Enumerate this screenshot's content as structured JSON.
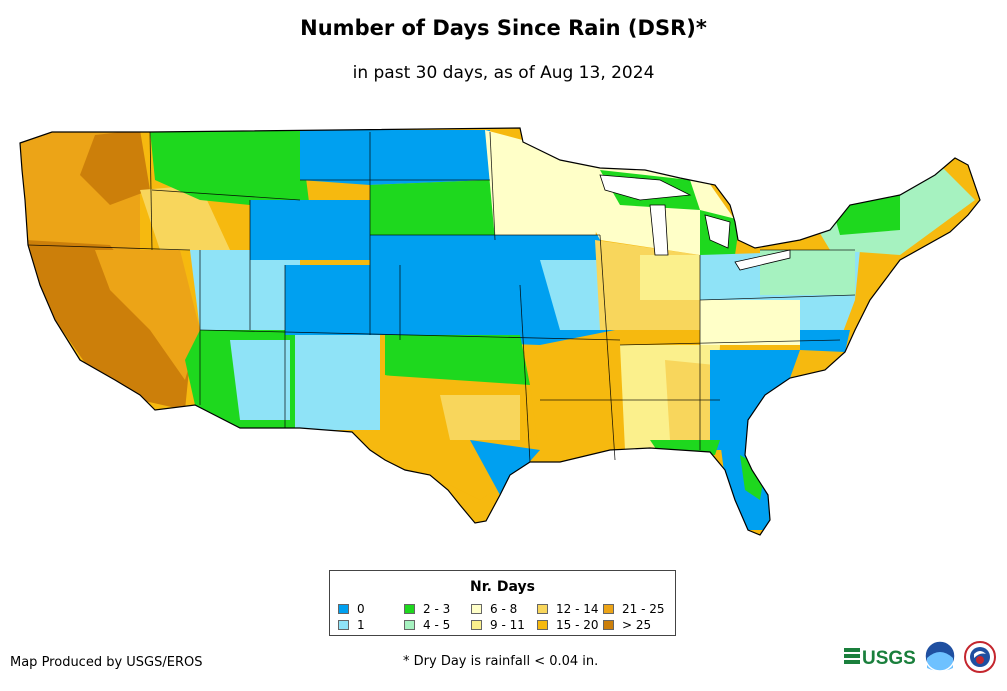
{
  "title": "Number of Days Since Rain (DSR)*",
  "subtitle": "in past 30 days, as of Aug 13, 2024",
  "legend": {
    "title": "Nr. Days",
    "items": [
      {
        "label": "0",
        "color": "#00a0f0"
      },
      {
        "label": "1",
        "color": "#8fe3f7"
      },
      {
        "label": "2 - 3",
        "color": "#1ed81e"
      },
      {
        "label": "4 - 5",
        "color": "#a6f2c0"
      },
      {
        "label": "6 - 8",
        "color": "#ffffc8"
      },
      {
        "label": "9 - 11",
        "color": "#fbf08c"
      },
      {
        "label": "12 - 14",
        "color": "#f8d65c"
      },
      {
        "label": "15 - 20",
        "color": "#f6b90f"
      },
      {
        "label": "21 - 25",
        "color": "#eca417"
      },
      {
        "label": "> 25",
        "color": "#cc7f0a"
      }
    ]
  },
  "credit": "Map Produced by USGS/EROS",
  "footnote": "* Dry Day is rainfall < 0.04 in.",
  "logos": {
    "usgs_text": "USGS"
  },
  "map_name": "map-of-contiguous-united-states"
}
